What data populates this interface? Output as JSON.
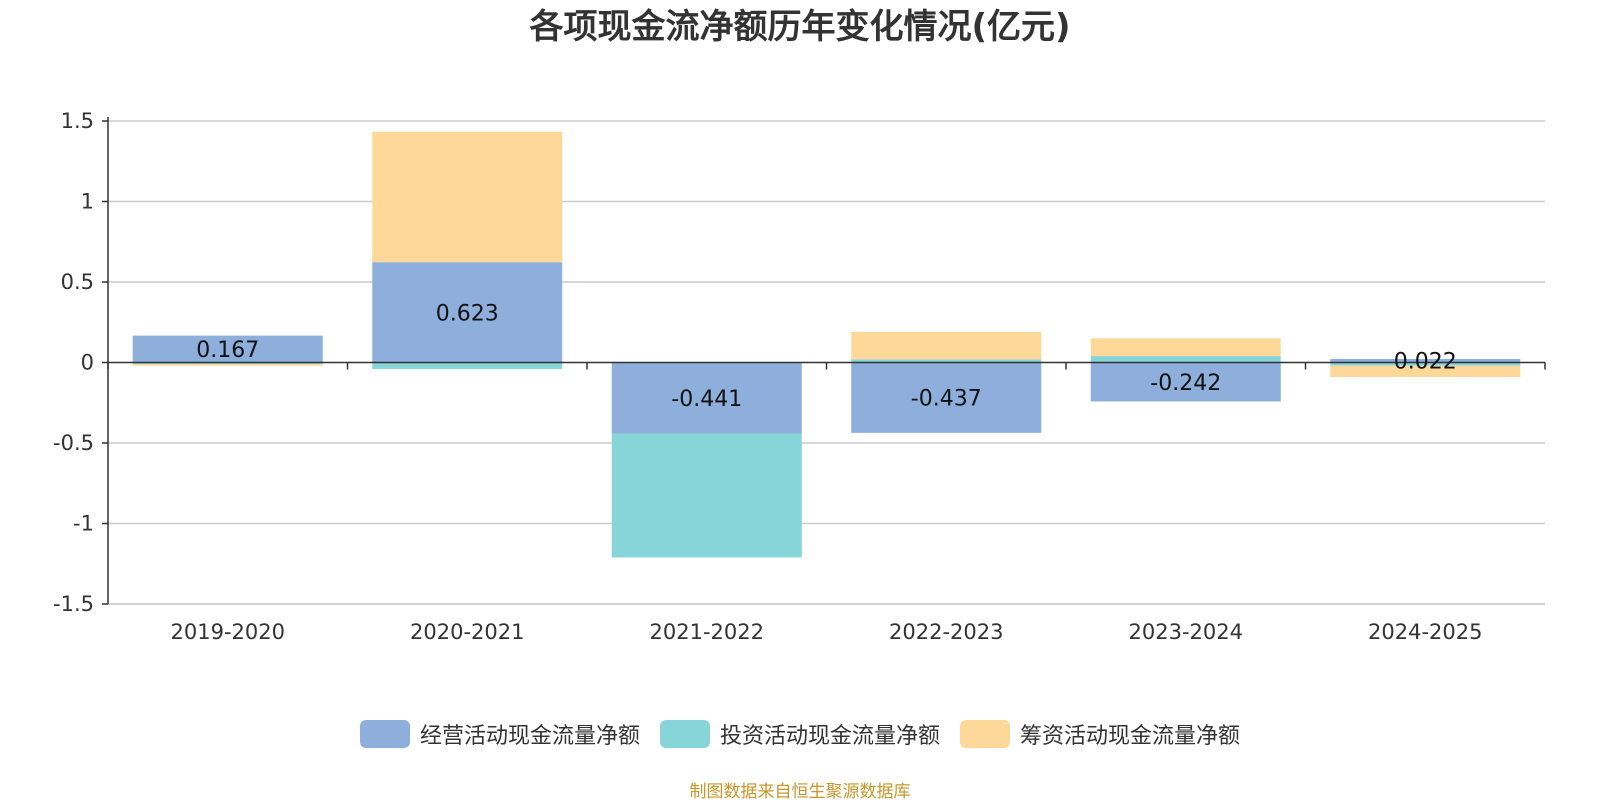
{
  "chart_data": {
    "type": "bar",
    "stacked": true,
    "title": "各项现金流净额历年变化情况(亿元)",
    "categories": [
      "2019-2020",
      "2020-2021",
      "2021-2022",
      "2022-2023",
      "2023-2024",
      "2024-2025"
    ],
    "series": [
      {
        "name": "经营活动现金流量净额",
        "color": "#8eaedc",
        "values": [
          0.167,
          0.623,
          -0.441,
          -0.437,
          -0.242,
          0.022
        ],
        "labels": [
          "0.167",
          "0.623",
          "-0.441",
          "-0.437",
          "-0.242",
          "0.022"
        ]
      },
      {
        "name": "投资活动现金流量净额",
        "color": "#87d5d9",
        "values": [
          -0.01,
          -0.04,
          -0.77,
          0.02,
          0.04,
          -0.02
        ]
      },
      {
        "name": "筹资活动现金流量净额",
        "color": "#fdd899",
        "values": [
          -0.01,
          0.81,
          0.0,
          0.17,
          0.11,
          -0.07
        ]
      }
    ],
    "ylim": [
      -1.5,
      1.5
    ],
    "yticks": [
      "1.5",
      "1",
      "0.5",
      "0",
      "-0.5",
      "-1",
      "-1.5"
    ],
    "ytick_values": [
      1.5,
      1,
      0.5,
      0,
      -0.5,
      -1,
      -1.5
    ],
    "xlabel": "",
    "ylabel": "",
    "grid": true,
    "legend_position": "bottom"
  },
  "source_note": "制图数据来自恒生聚源数据库"
}
